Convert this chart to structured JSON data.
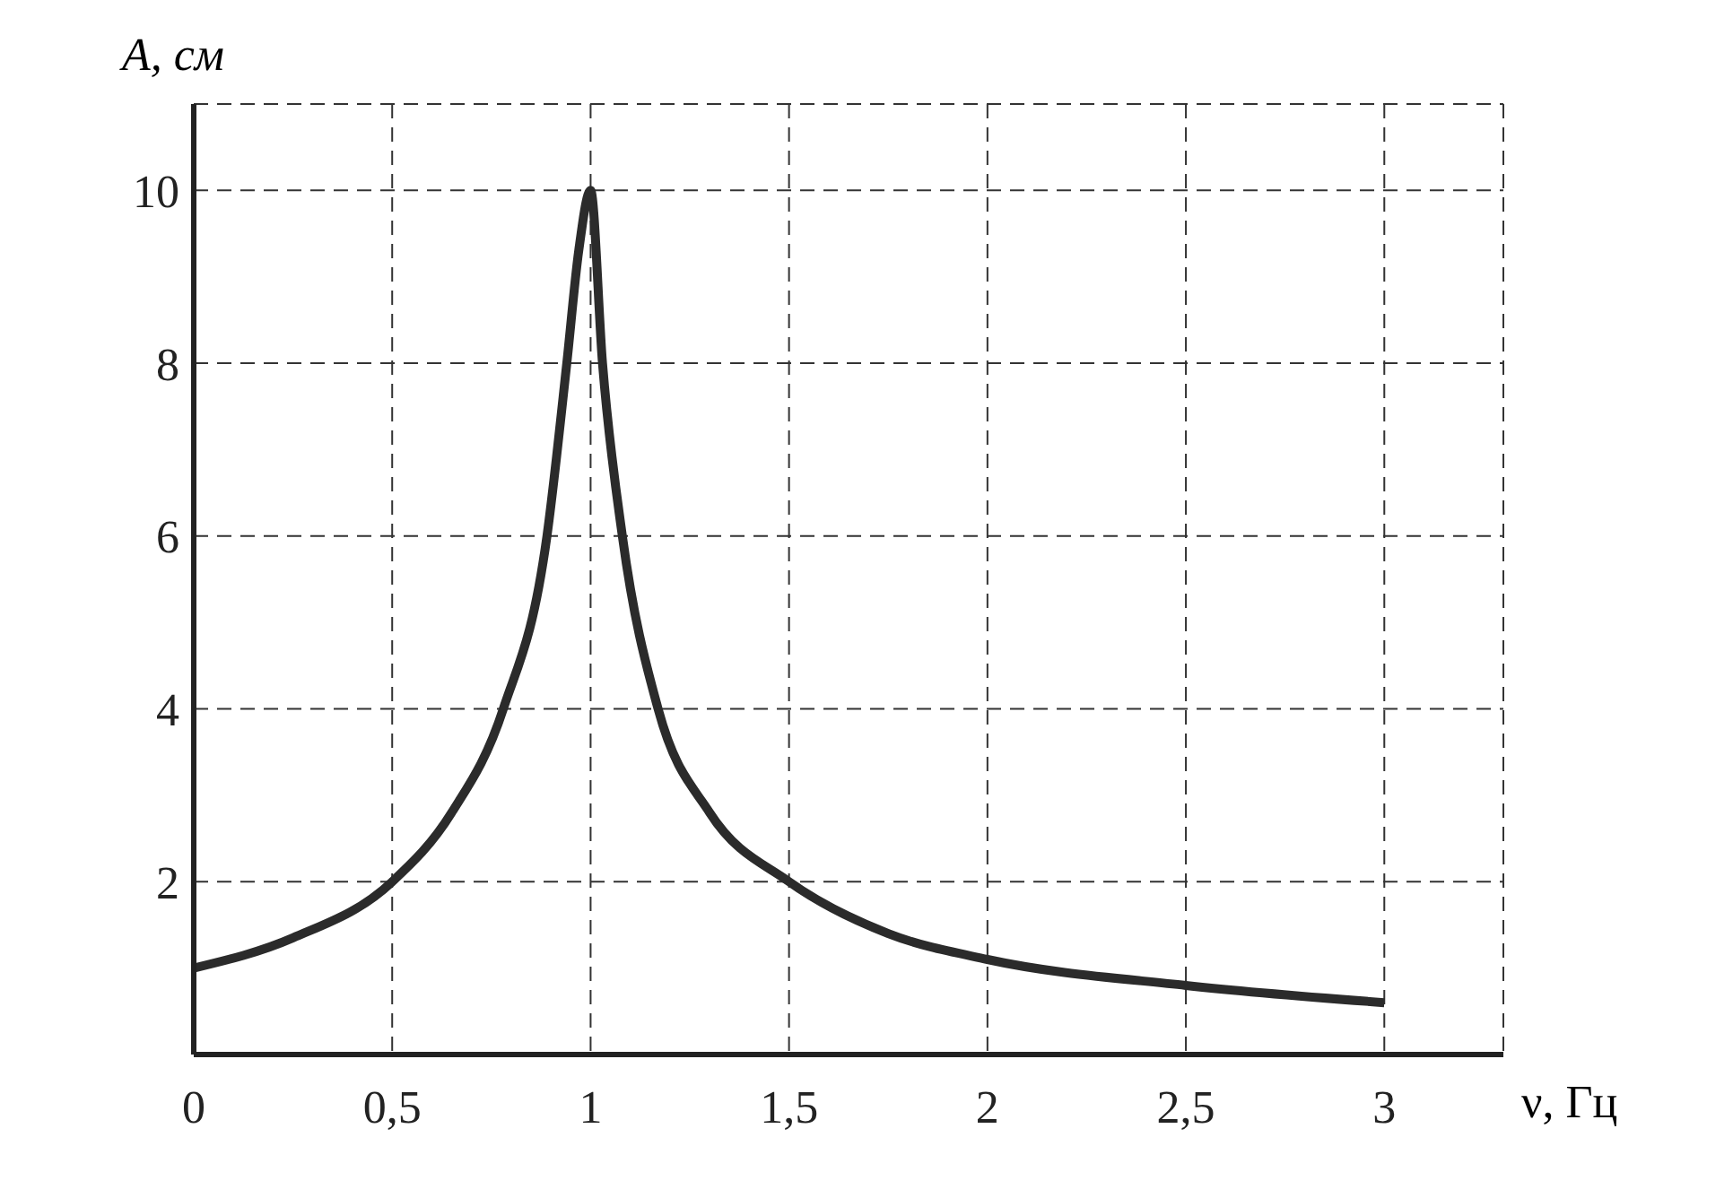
{
  "chart_data": {
    "type": "line",
    "xlabel": "ν, Гц",
    "ylabel": "A, см",
    "x": [
      0,
      0.25,
      0.5,
      0.65,
      0.78,
      0.89,
      0.94,
      0.97,
      1.0,
      1.03,
      1.08,
      1.17,
      1.3,
      1.5,
      1.75,
      2,
      2.5,
      3
    ],
    "series": [
      {
        "color": "#2b2b2b",
        "values": [
          1.0,
          1.35,
          2.0,
          2.8,
          4,
          6,
          8,
          9.3,
          10,
          8,
          6,
          4,
          2.8,
          2.0,
          1.4,
          1.1,
          0.8,
          0.6
        ]
      }
    ],
    "xlim": [
      0,
      3.3
    ],
    "xticks": [
      0,
      {
        "value": 0.5,
        "label": "0,5"
      },
      1,
      {
        "value": 1.5,
        "label": "1,5"
      },
      2,
      {
        "value": 2.5,
        "label": "2,5"
      },
      3
    ],
    "ylim": [
      0,
      11
    ],
    "yticks": [
      2,
      4,
      6,
      8,
      10
    ],
    "grid": true,
    "marker": "none",
    "line_style": "solid"
  }
}
